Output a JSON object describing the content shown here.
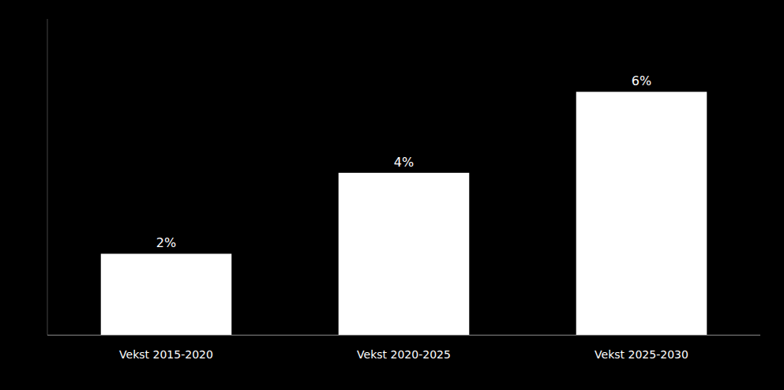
{
  "chart_data": {
    "type": "bar",
    "categories": [
      "Vekst 2015-2020",
      "Vekst 2020-2025",
      "Vekst 2025-2030"
    ],
    "values": [
      2,
      4,
      6
    ],
    "value_labels": [
      "2%",
      "4%",
      "6%"
    ],
    "color": "#ffffff",
    "ylim": [
      0,
      7.8
    ],
    "data_labels": true,
    "tick_labels": "x",
    "grid": false
  }
}
